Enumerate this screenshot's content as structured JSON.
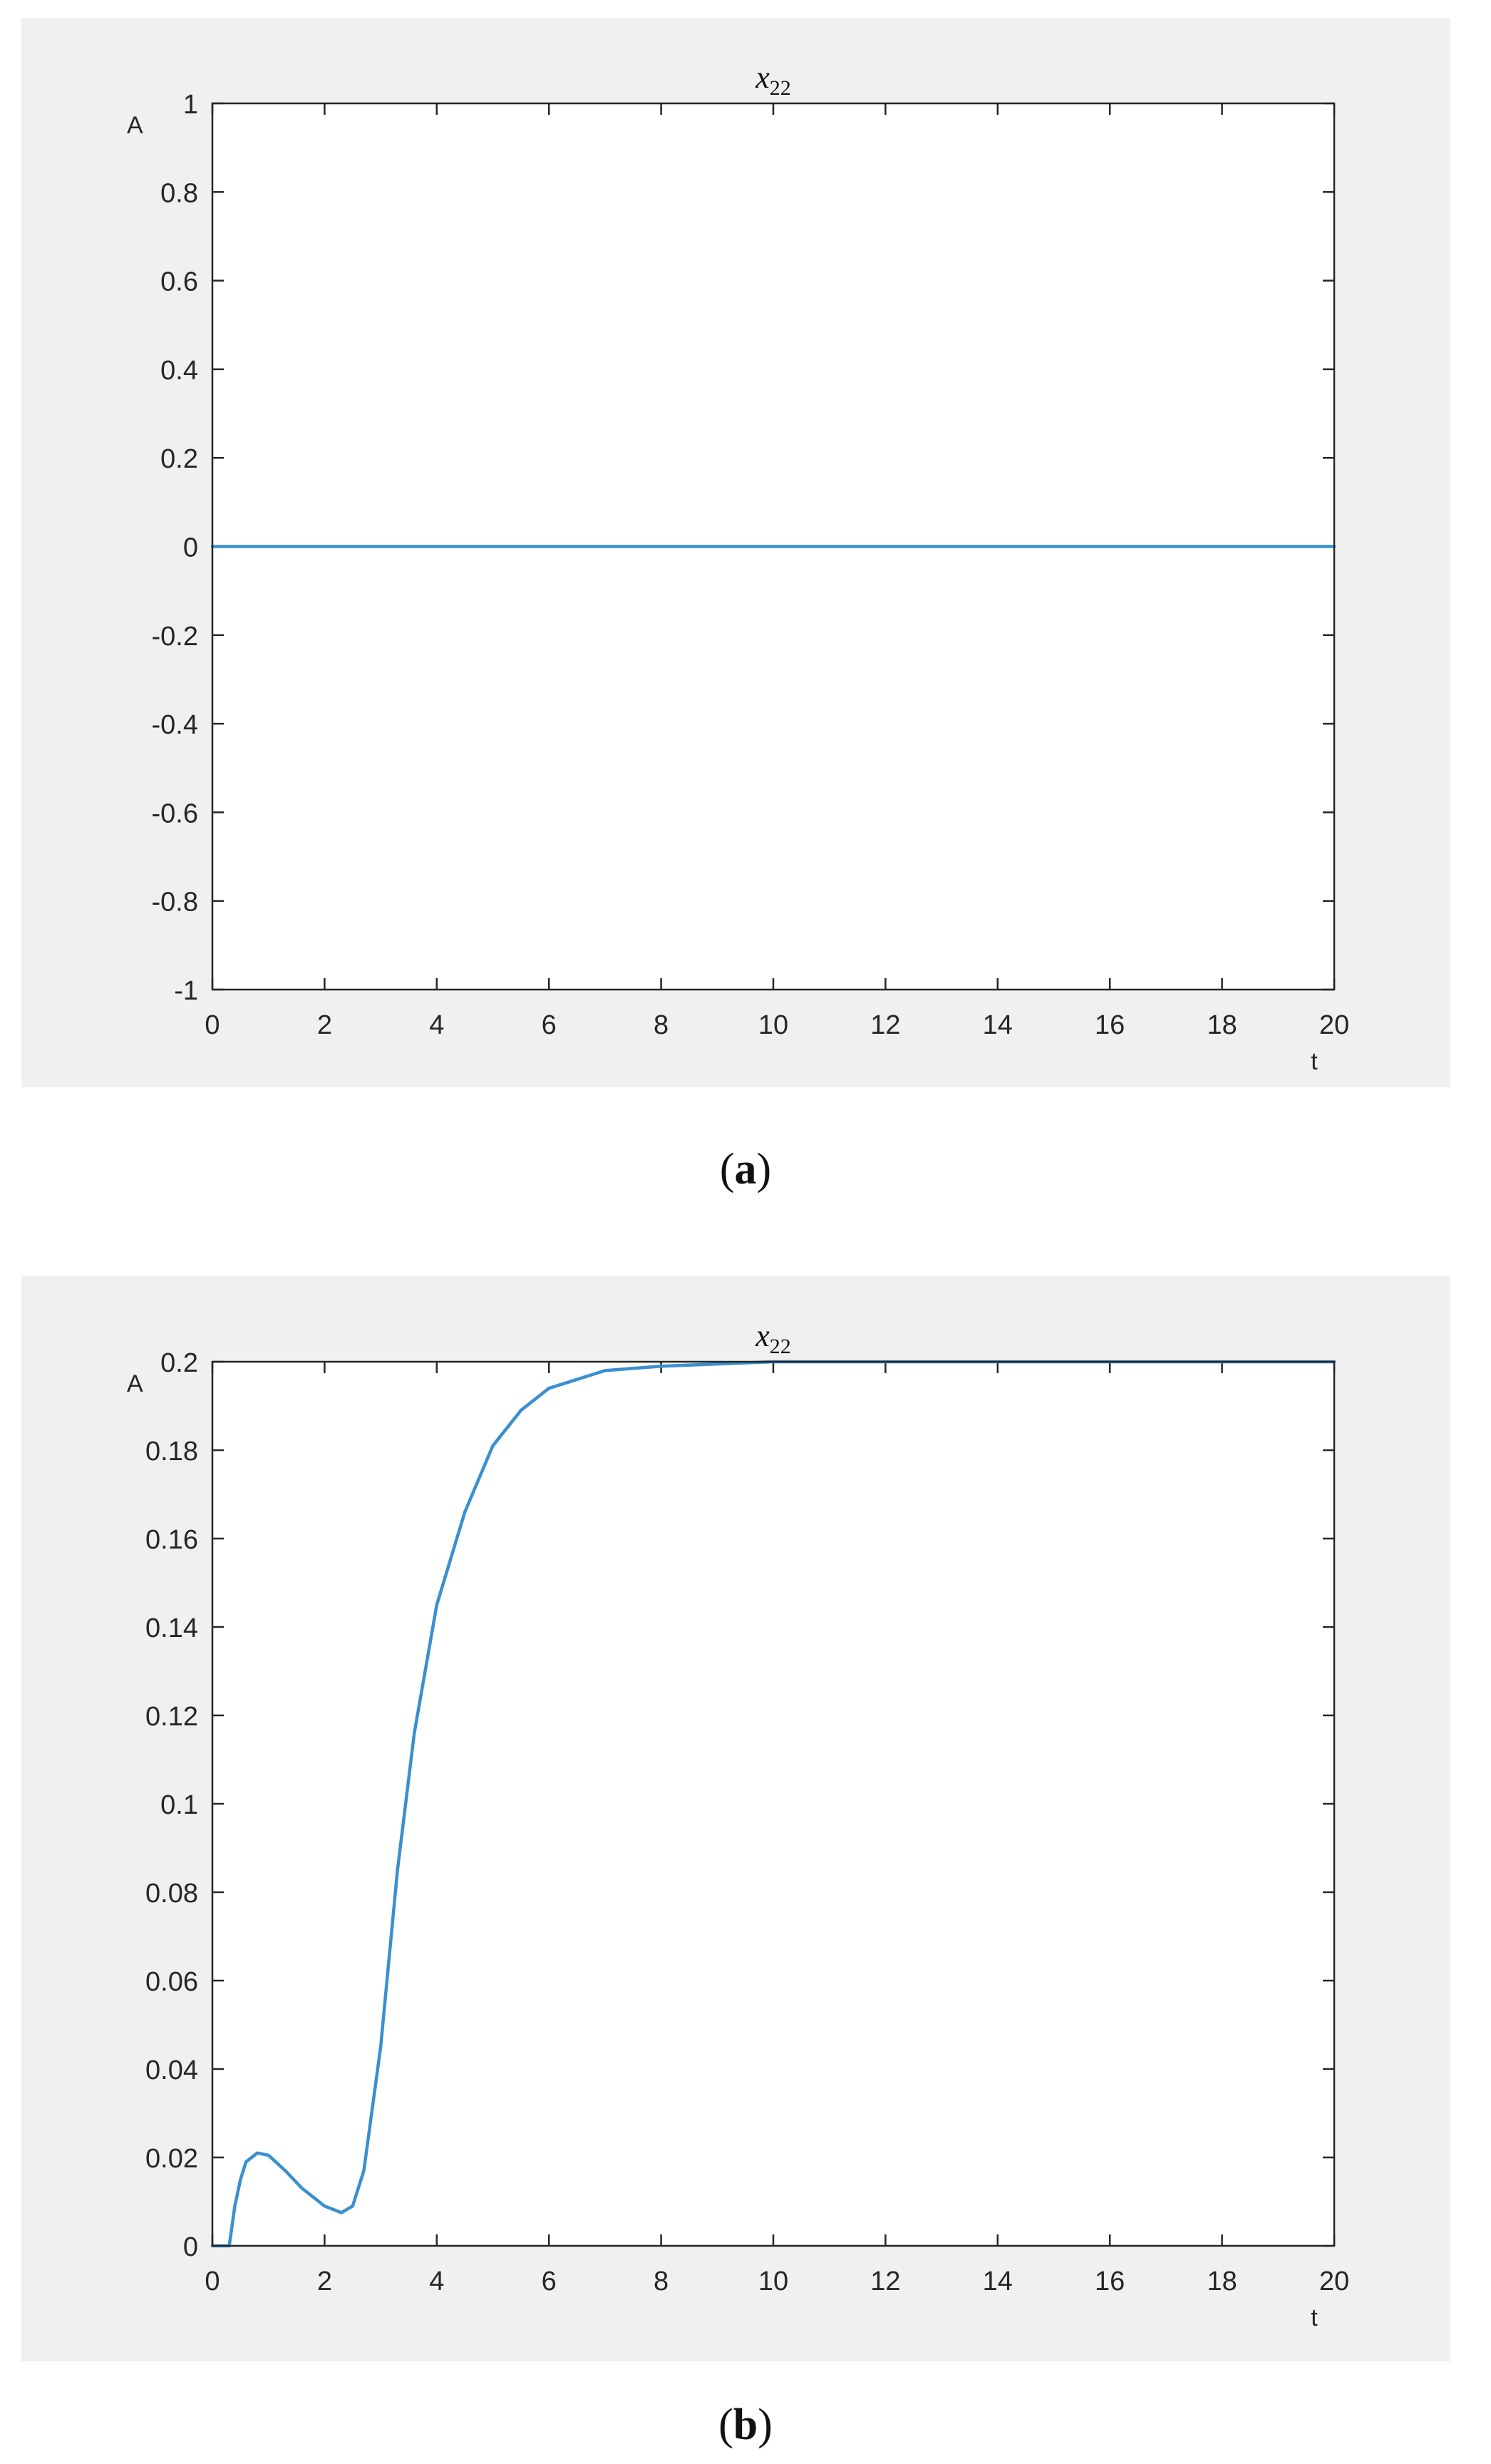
{
  "chart_data": [
    {
      "type": "line",
      "title": "x22",
      "title_main": "x",
      "title_sub": "22",
      "ylabel": "A",
      "xlabel": "t",
      "xlim": [
        0,
        20
      ],
      "ylim": [
        -1,
        1
      ],
      "xticks": [
        "0",
        "2",
        "4",
        "6",
        "8",
        "10",
        "12",
        "14",
        "16",
        "18",
        "20"
      ],
      "yticks": [
        "-1",
        "-0.8",
        "-0.6",
        "-0.4",
        "-0.2",
        "0",
        "0.2",
        "0.4",
        "0.6",
        "0.8",
        "1"
      ],
      "grid": false,
      "series": [
        {
          "color": "#3a8fd0",
          "x": [
            0,
            20
          ],
          "y": [
            0,
            0
          ]
        }
      ],
      "caption": "a"
    },
    {
      "type": "line",
      "title": "x22",
      "title_main": "x",
      "title_sub": "22",
      "ylabel": "A",
      "xlabel": "t",
      "xlim": [
        0,
        20
      ],
      "ylim": [
        0,
        0.2
      ],
      "xticks": [
        "0",
        "2",
        "4",
        "6",
        "8",
        "10",
        "12",
        "14",
        "16",
        "18",
        "20"
      ],
      "yticks": [
        "0",
        "0.02",
        "0.04",
        "0.06",
        "0.08",
        "0.1",
        "0.12",
        "0.14",
        "0.16",
        "0.18",
        "0.2"
      ],
      "grid": false,
      "series": [
        {
          "color": "#3a8fd0",
          "x": [
            0,
            0.3,
            0.4,
            0.5,
            0.6,
            0.8,
            1.0,
            1.3,
            1.6,
            2.0,
            2.3,
            2.5,
            2.7,
            3.0,
            3.3,
            3.6,
            4.0,
            4.5,
            5.0,
            5.5,
            6.0,
            6.5,
            7.0,
            8.0,
            9.0,
            10.0,
            12.0,
            15.0,
            20.0
          ],
          "y": [
            0,
            0,
            0.009,
            0.015,
            0.019,
            0.021,
            0.0205,
            0.017,
            0.013,
            0.009,
            0.0075,
            0.009,
            0.017,
            0.045,
            0.085,
            0.116,
            0.145,
            0.166,
            0.181,
            0.189,
            0.194,
            0.196,
            0.198,
            0.199,
            0.1995,
            0.2,
            0.2,
            0.2,
            0.2
          ]
        }
      ],
      "caption": "b"
    }
  ]
}
